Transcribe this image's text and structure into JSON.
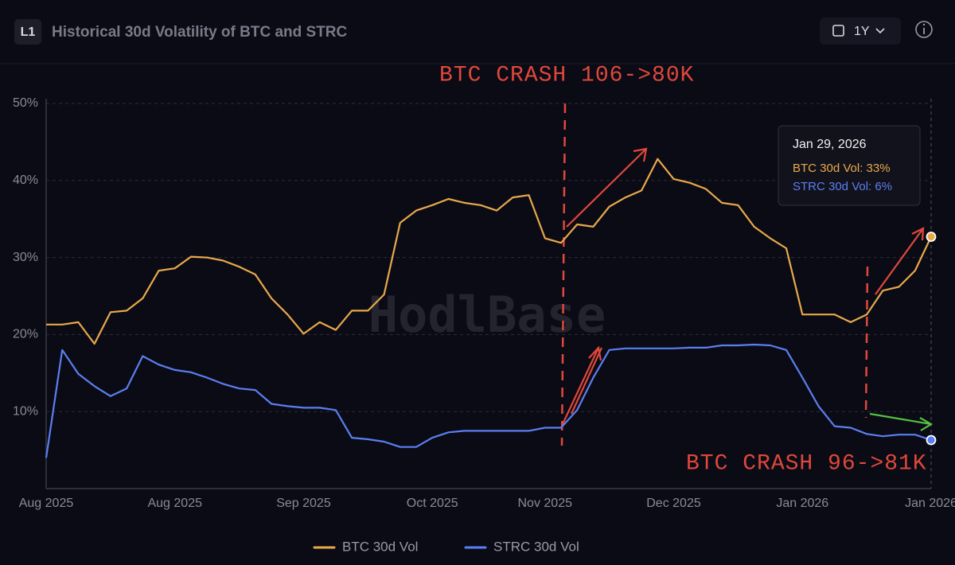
{
  "header": {
    "badge": "L1",
    "range": "1Y"
  },
  "chart_data": {
    "type": "line",
    "title": "Historical 30d Volatility of BTC and STRC",
    "watermark": "HodlBase",
    "annotations": [
      "BTC CRASH 106->80K",
      "BTC CRASH 96->81K"
    ],
    "tooltip": {
      "date": "Jan 29, 2026",
      "lines": [
        "BTC 30d Vol: 33%",
        "STRC 30d Vol: 6%"
      ]
    },
    "categories": [
      "Aug 2025",
      null,
      null,
      null,
      null,
      null,
      null,
      null,
      "Aug 2025",
      null,
      null,
      null,
      null,
      null,
      null,
      null,
      "Sep 2025",
      null,
      null,
      null,
      null,
      null,
      null,
      null,
      "Oct 2025",
      null,
      null,
      null,
      null,
      null,
      null,
      "Nov 2025",
      null,
      null,
      null,
      null,
      null,
      null,
      null,
      "Dec 2025",
      null,
      null,
      null,
      null,
      null,
      null,
      null,
      "Jan 2026",
      null,
      null,
      null,
      null,
      null,
      null,
      null,
      "Jan 2026"
    ],
    "ylim": [
      0,
      50
    ],
    "yticks": [
      {
        "value": 10,
        "label": "10%"
      },
      {
        "value": 20,
        "label": "20%"
      },
      {
        "value": 30,
        "label": "30%"
      },
      {
        "value": 40,
        "label": "40%"
      },
      {
        "value": 50,
        "label": "50%"
      }
    ],
    "grid": true,
    "series": [
      {
        "name": "BTC 30d Vol",
        "color": "#e8a94a",
        "values": [
          21.3,
          21.3,
          21.6,
          18.8,
          22.9,
          23.1,
          24.7,
          28.3,
          28.6,
          30.1,
          30.0,
          29.6,
          28.8,
          27.8,
          24.7,
          22.6,
          20.1,
          21.6,
          20.6,
          23.1,
          23.1,
          25.2,
          34.5,
          36.1,
          36.8,
          37.6,
          37.1,
          36.8,
          36.1,
          37.8,
          38.1,
          32.5,
          31.9,
          34.3,
          34.0,
          36.6,
          37.8,
          38.7,
          42.8,
          40.2,
          39.7,
          38.9,
          37.1,
          36.8,
          34.0,
          32.5,
          31.2,
          22.6,
          22.6,
          22.6,
          21.6,
          22.6,
          25.7,
          26.2,
          28.3,
          32.7
        ]
      },
      {
        "name": "STRC 30d Vol",
        "color": "#5b7ff0",
        "values": [
          4.0,
          18.0,
          14.9,
          13.3,
          12.0,
          13.0,
          17.2,
          16.1,
          15.4,
          15.1,
          14.4,
          13.6,
          13.0,
          12.8,
          11.0,
          10.7,
          10.5,
          10.5,
          10.2,
          6.6,
          6.4,
          6.1,
          5.4,
          5.4,
          6.6,
          7.3,
          7.5,
          7.5,
          7.5,
          7.5,
          7.5,
          7.9,
          7.9,
          10.2,
          14.4,
          18.0,
          18.2,
          18.2,
          18.2,
          18.2,
          18.3,
          18.3,
          18.6,
          18.6,
          18.7,
          18.6,
          18.0,
          14.4,
          10.7,
          8.1,
          7.9,
          7.1,
          6.8,
          7.0,
          7.0,
          6.3
        ]
      }
    ]
  }
}
